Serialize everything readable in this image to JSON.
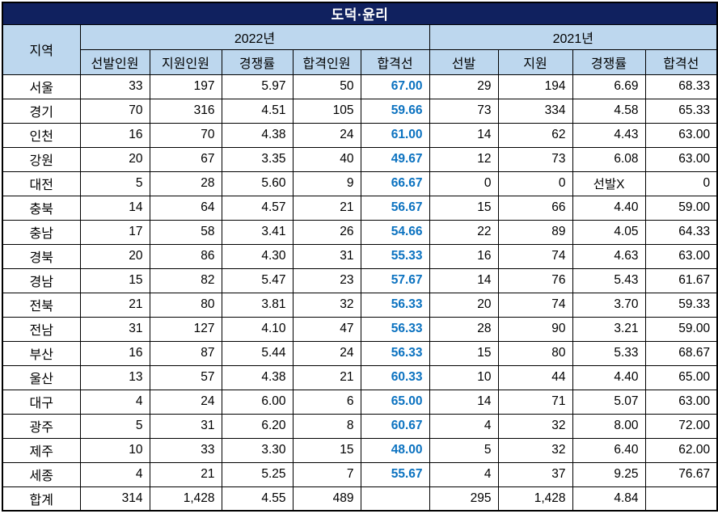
{
  "title": "도덕·윤리",
  "colors": {
    "title_bg": "#10215F",
    "title_text": "#FFFFFF",
    "header_bg": "#BDD7EE",
    "border": "#000000",
    "cutoff_2022_text": "#0B72C0"
  },
  "header": {
    "region": "지역",
    "groups": [
      {
        "label": "2022년",
        "cols": [
          "선발인원",
          "지원인원",
          "경쟁률",
          "합격인원",
          "합격선"
        ]
      },
      {
        "label": "2021년",
        "cols": [
          "선발",
          "지원",
          "경쟁률",
          "합격선"
        ]
      }
    ]
  },
  "rows": [
    {
      "region": "서울",
      "y2022": [
        "33",
        "197",
        "5.97",
        "50",
        "67.00"
      ],
      "y2021": [
        "29",
        "194",
        "6.69",
        "68.33"
      ]
    },
    {
      "region": "경기",
      "y2022": [
        "70",
        "316",
        "4.51",
        "105",
        "59.66"
      ],
      "y2021": [
        "73",
        "334",
        "4.58",
        "65.33"
      ]
    },
    {
      "region": "인천",
      "y2022": [
        "16",
        "70",
        "4.38",
        "24",
        "61.00"
      ],
      "y2021": [
        "14",
        "62",
        "4.43",
        "63.00"
      ]
    },
    {
      "region": "강원",
      "y2022": [
        "20",
        "67",
        "3.35",
        "40",
        "49.67"
      ],
      "y2021": [
        "12",
        "73",
        "6.08",
        "63.00"
      ]
    },
    {
      "region": "대전",
      "y2022": [
        "5",
        "28",
        "5.60",
        "9",
        "66.67"
      ],
      "y2021": [
        "0",
        "0",
        "선발X",
        "0"
      ]
    },
    {
      "region": "충북",
      "y2022": [
        "14",
        "64",
        "4.57",
        "21",
        "56.67"
      ],
      "y2021": [
        "15",
        "66",
        "4.40",
        "59.00"
      ]
    },
    {
      "region": "충남",
      "y2022": [
        "17",
        "58",
        "3.41",
        "26",
        "54.66"
      ],
      "y2021": [
        "22",
        "89",
        "4.05",
        "64.33"
      ]
    },
    {
      "region": "경북",
      "y2022": [
        "20",
        "86",
        "4.30",
        "31",
        "55.33"
      ],
      "y2021": [
        "16",
        "74",
        "4.63",
        "63.00"
      ]
    },
    {
      "region": "경남",
      "y2022": [
        "15",
        "82",
        "5.47",
        "23",
        "57.67"
      ],
      "y2021": [
        "14",
        "76",
        "5.43",
        "61.67"
      ]
    },
    {
      "region": "전북",
      "y2022": [
        "21",
        "80",
        "3.81",
        "32",
        "56.33"
      ],
      "y2021": [
        "20",
        "74",
        "3.70",
        "59.33"
      ]
    },
    {
      "region": "전남",
      "y2022": [
        "31",
        "127",
        "4.10",
        "47",
        "56.33"
      ],
      "y2021": [
        "28",
        "90",
        "3.21",
        "59.00"
      ]
    },
    {
      "region": "부산",
      "y2022": [
        "16",
        "87",
        "5.44",
        "24",
        "56.33"
      ],
      "y2021": [
        "15",
        "80",
        "5.33",
        "68.67"
      ]
    },
    {
      "region": "울산",
      "y2022": [
        "13",
        "57",
        "4.38",
        "21",
        "60.33"
      ],
      "y2021": [
        "10",
        "44",
        "4.40",
        "65.00"
      ]
    },
    {
      "region": "대구",
      "y2022": [
        "4",
        "24",
        "6.00",
        "6",
        "65.00"
      ],
      "y2021": [
        "14",
        "71",
        "5.07",
        "63.00"
      ]
    },
    {
      "region": "광주",
      "y2022": [
        "5",
        "31",
        "6.20",
        "8",
        "60.67"
      ],
      "y2021": [
        "4",
        "32",
        "8.00",
        "72.00"
      ]
    },
    {
      "region": "제주",
      "y2022": [
        "10",
        "33",
        "3.30",
        "15",
        "48.00"
      ],
      "y2021": [
        "5",
        "32",
        "6.40",
        "62.00"
      ]
    },
    {
      "region": "세종",
      "y2022": [
        "4",
        "21",
        "5.25",
        "7",
        "55.67"
      ],
      "y2021": [
        "4",
        "37",
        "9.25",
        "76.67"
      ]
    },
    {
      "region": "합계",
      "y2022": [
        "314",
        "1,428",
        "4.55",
        "489",
        ""
      ],
      "y2021": [
        "295",
        "1,428",
        "4.84",
        ""
      ]
    }
  ]
}
